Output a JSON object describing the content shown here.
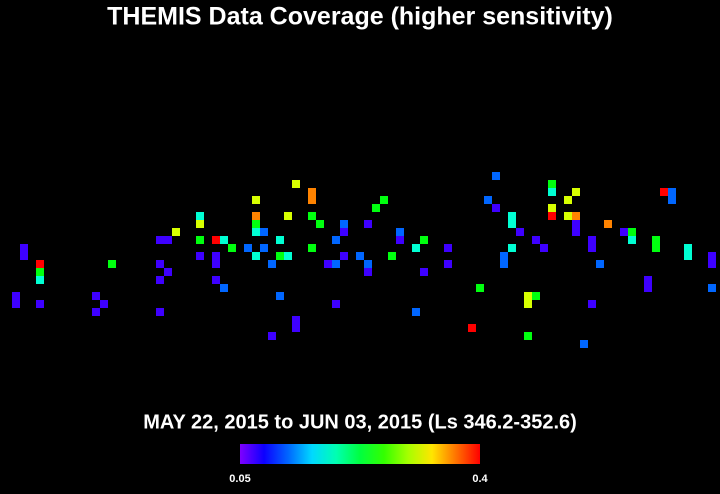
{
  "chart_data": {
    "type": "heatmap-scatter",
    "title": "THEMIS Data Coverage (higher sensitivity)",
    "subtitle": "MAY 22, 2015 to JUN 03, 2015 (Ls 346.2-352.6)",
    "xlim": [
      0,
      90
    ],
    "ylim": [
      0,
      61.75
    ],
    "clim": [
      0.05,
      0.4
    ],
    "cbticks": [
      0.05,
      0.4
    ],
    "x": [
      3,
      3,
      5,
      5,
      5,
      2,
      2,
      5,
      12,
      13,
      12,
      14,
      20,
      21,
      22,
      20,
      21,
      20,
      20,
      25,
      25,
      25,
      25,
      27,
      28,
      29,
      27,
      27,
      27,
      28,
      32,
      32,
      32,
      33,
      32,
      31,
      32,
      34,
      33,
      35,
      35,
      36,
      36,
      37,
      39,
      39,
      39,
      40,
      39,
      42,
      41,
      42,
      43,
      43,
      43,
      45,
      46,
      46,
      47,
      48,
      46,
      49,
      50,
      50,
      52,
      53,
      53,
      52,
      35,
      37,
      37,
      34,
      42,
      56,
      56,
      59,
      60,
      62,
      61,
      62,
      64,
      64,
      65,
      64,
      63,
      63,
      68,
      67,
      66,
      67,
      66,
      66,
      69,
      69,
      69,
      69,
      71,
      72,
      71,
      72,
      72,
      72,
      74,
      74,
      75,
      76,
      74,
      73,
      78,
      79,
      79,
      81,
      81,
      82,
      82,
      83,
      84,
      84,
      86,
      86,
      89,
      89,
      89
    ],
    "y": [
      31,
      32,
      33,
      34,
      35,
      37,
      38,
      38,
      37,
      38,
      39,
      33,
      30,
      30,
      29,
      33,
      34,
      35,
      39,
      27,
      28,
      30,
      32,
      30,
      30,
      31,
      32,
      33,
      35,
      36,
      25,
      27,
      28,
      29,
      29,
      31,
      32,
      33,
      31,
      30,
      32,
      32,
      27,
      23,
      24,
      25,
      27,
      28,
      31,
      30,
      33,
      33,
      28,
      29,
      32,
      32,
      33,
      34,
      26,
      25,
      28,
      32,
      29,
      30,
      31,
      30,
      34,
      39,
      37,
      40,
      41,
      42,
      38,
      31,
      33,
      41,
      36,
      22,
      25,
      26,
      27,
      28,
      29,
      31,
      32,
      33,
      31,
      30,
      37,
      37,
      38,
      42,
      23,
      24,
      26,
      27,
      25,
      24,
      27,
      27,
      28,
      29,
      30,
      31,
      33,
      28,
      38,
      43,
      29,
      29,
      30,
      35,
      36,
      30,
      31,
      24,
      24,
      25,
      31,
      32,
      32,
      33,
      36
    ],
    "values": [
      0.07,
      0.07,
      0.4,
      0.24,
      0.18,
      0.07,
      0.07,
      0.07,
      0.07,
      0.07,
      0.07,
      0.24,
      0.07,
      0.07,
      0.31,
      0.07,
      0.07,
      0.07,
      0.07,
      0.18,
      0.31,
      0.24,
      0.07,
      0.4,
      0.18,
      0.24,
      0.07,
      0.07,
      0.07,
      0.12,
      0.31,
      0.36,
      0.24,
      0.12,
      0.18,
      0.12,
      0.18,
      0.12,
      0.12,
      0.18,
      0.24,
      0.18,
      0.31,
      0.31,
      0.36,
      0.36,
      0.24,
      0.24,
      0.24,
      0.12,
      0.07,
      0.12,
      0.12,
      0.07,
      0.07,
      0.12,
      0.12,
      0.07,
      0.24,
      0.24,
      0.07,
      0.24,
      0.12,
      0.07,
      0.18,
      0.24,
      0.07,
      0.12,
      0.12,
      0.07,
      0.07,
      0.07,
      0.07,
      0.07,
      0.07,
      0.4,
      0.24,
      0.12,
      0.12,
      0.07,
      0.18,
      0.18,
      0.07,
      0.18,
      0.12,
      0.12,
      0.07,
      0.07,
      0.31,
      0.24,
      0.31,
      0.24,
      0.24,
      0.18,
      0.31,
      0.4,
      0.31,
      0.31,
      0.31,
      0.36,
      0.07,
      0.07,
      0.07,
      0.07,
      0.12,
      0.36,
      0.07,
      0.12,
      0.07,
      0.24,
      0.18,
      0.07,
      0.07,
      0.24,
      0.24,
      0.4,
      0.12,
      0.12,
      0.18,
      0.18,
      0.07,
      0.07,
      0.12
    ]
  }
}
